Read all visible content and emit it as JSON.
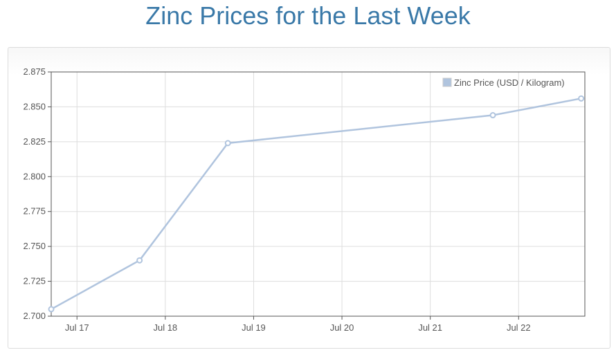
{
  "title": "Zinc Prices for the Last Week",
  "colors": {
    "title": "#3a79a8",
    "series": "#b0c4de",
    "grid": "#dddddd",
    "axis": "#555555"
  },
  "chart_data": {
    "type": "line",
    "title": "Zinc Prices for the Last Week",
    "xlabel": "",
    "ylabel": "",
    "x_ticks": [
      "Jul 17",
      "Jul 18",
      "Jul 19",
      "Jul 20",
      "Jul 21",
      "Jul 22"
    ],
    "y_ticks": [
      "2.700",
      "2.725",
      "2.750",
      "2.775",
      "2.800",
      "2.825",
      "2.850",
      "2.875"
    ],
    "ylim": [
      2.7,
      2.875
    ],
    "xlim": [
      "Jul 16 17:00",
      "Jul 22 18:00"
    ],
    "grid": true,
    "legend_position": "top-right",
    "series": [
      {
        "name": "Zinc Price (USD / Kilogram)",
        "points": [
          {
            "x": "Jul 16 17:00",
            "y": 2.705
          },
          {
            "x": "Jul 17 17:00",
            "y": 2.74
          },
          {
            "x": "Jul 18 17:00",
            "y": 2.824
          },
          {
            "x": "Jul 21 17:00",
            "y": 2.844
          },
          {
            "x": "Jul 22 17:00",
            "y": 2.856
          }
        ]
      }
    ]
  }
}
